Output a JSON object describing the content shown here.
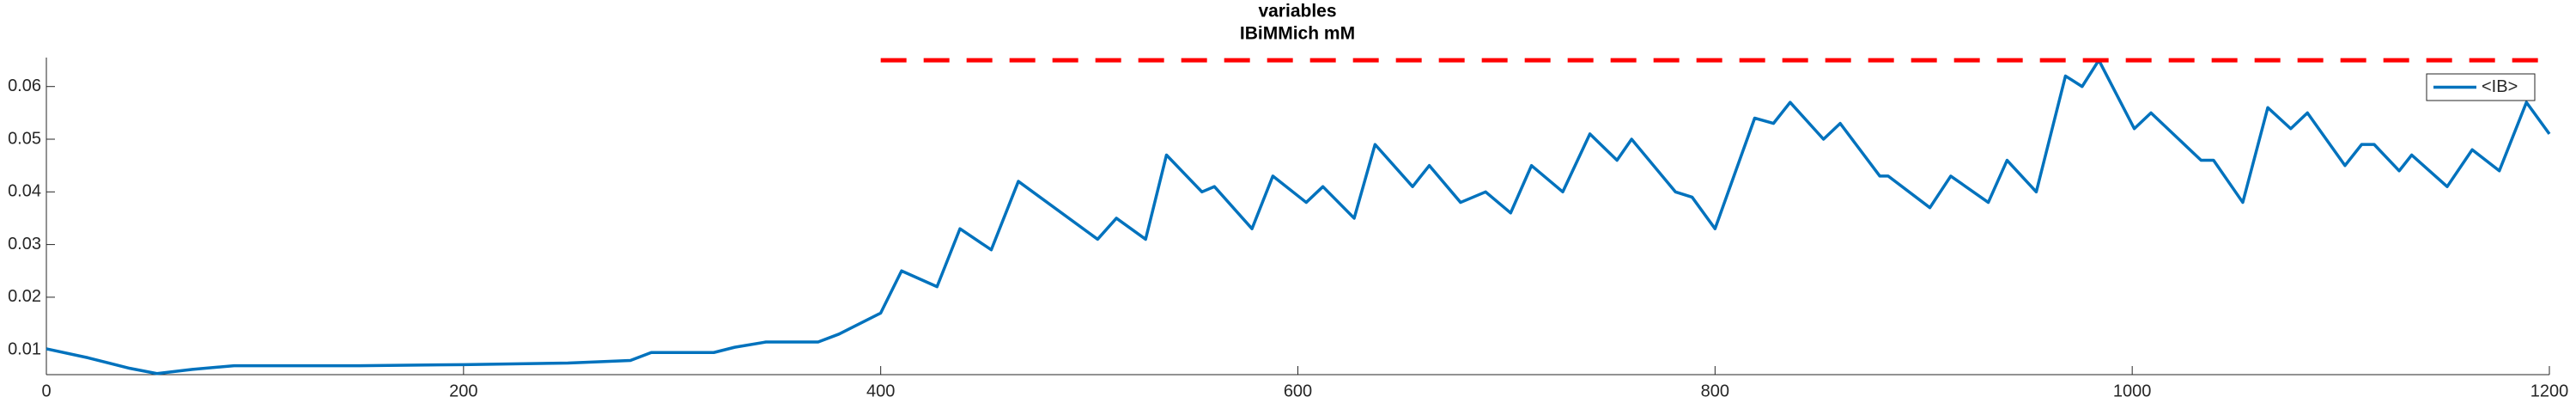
{
  "chart_data": {
    "type": "line",
    "title": "variables",
    "subtitle": "IBiMMich mM",
    "xlim": [
      0,
      1200
    ],
    "ylim": [
      0.0053,
      0.0655
    ],
    "xticks": [
      0,
      200,
      400,
      600,
      800,
      1000,
      1200
    ],
    "yticks": [
      0.01,
      0.02,
      0.03,
      0.04,
      0.05,
      0.06
    ],
    "legend": "upper right",
    "series": [
      {
        "name": "<IB>",
        "color": "#0072bd",
        "x": [
          0,
          20,
          40,
          53,
          70,
          90,
          150,
          200,
          250,
          280,
          290,
          320,
          330,
          345,
          370,
          380,
          390,
          400,
          410,
          427,
          438,
          453,
          466,
          504,
          513,
          527,
          537,
          554,
          560,
          578,
          588,
          604,
          612,
          627,
          637,
          655,
          663,
          678,
          690,
          702,
          712,
          727,
          740,
          753,
          760,
          781,
          789,
          800,
          819,
          828,
          836,
          852,
          860,
          879,
          883,
          903,
          913,
          931,
          940,
          954,
          968,
          976,
          984,
          1001,
          1009,
          1033,
          1039,
          1053,
          1065,
          1076,
          1084,
          1102,
          1110,
          1116,
          1128,
          1134,
          1151,
          1163,
          1176,
          1189,
          1200
        ],
        "values": [
          0.0102,
          0.0085,
          0.0065,
          0.0055,
          0.0063,
          0.007,
          0.007,
          0.0072,
          0.0075,
          0.008,
          0.0095,
          0.0095,
          0.0105,
          0.0115,
          0.0115,
          0.013,
          0.015,
          0.017,
          0.025,
          0.022,
          0.033,
          0.029,
          0.042,
          0.031,
          0.035,
          0.031,
          0.047,
          0.04,
          0.041,
          0.033,
          0.043,
          0.038,
          0.041,
          0.035,
          0.049,
          0.041,
          0.045,
          0.038,
          0.04,
          0.036,
          0.045,
          0.04,
          0.051,
          0.046,
          0.05,
          0.04,
          0.039,
          0.033,
          0.054,
          0.053,
          0.057,
          0.05,
          0.053,
          0.043,
          0.043,
          0.037,
          0.043,
          0.038,
          0.046,
          0.04,
          0.062,
          0.06,
          0.065,
          0.052,
          0.055,
          0.046,
          0.046,
          0.038,
          0.056,
          0.052,
          0.055,
          0.045,
          0.049,
          0.049,
          0.044,
          0.047,
          0.041,
          0.048,
          0.044,
          0.057,
          0.051
        ]
      },
      {
        "color": "#ff0000",
        "dashed": true,
        "x": [
          400,
          1200
        ],
        "values": [
          0.065,
          0.065
        ]
      }
    ]
  }
}
